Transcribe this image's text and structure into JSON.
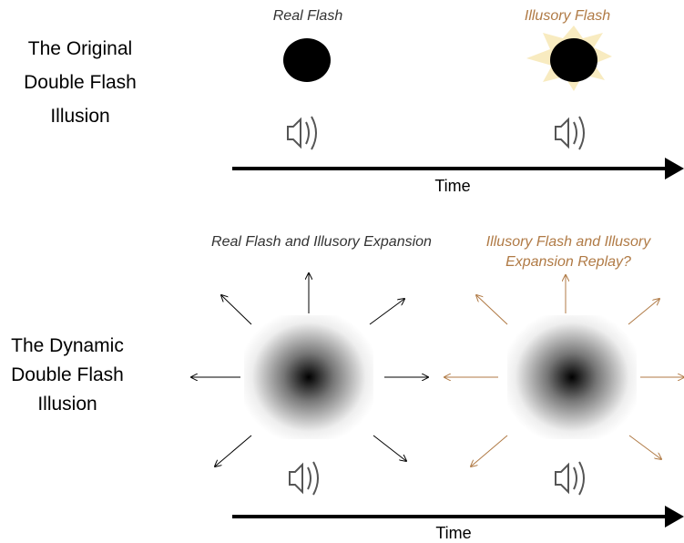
{
  "panels": [
    {
      "title_lines": [
        "The Original",
        "Double Flash",
        "Illusion"
      ],
      "left_label": "Real Flash",
      "right_label": "Illusory  Flash",
      "axis_label": "Time"
    },
    {
      "title_lines": [
        "The Dynamic",
        "Double Flash",
        "Illusion"
      ],
      "left_label": "Real Flash and Illusory Expansion",
      "right_label_lines": [
        "Illusory Flash and Illusory",
        "Expansion Replay?"
      ],
      "axis_label": "Time"
    }
  ]
}
